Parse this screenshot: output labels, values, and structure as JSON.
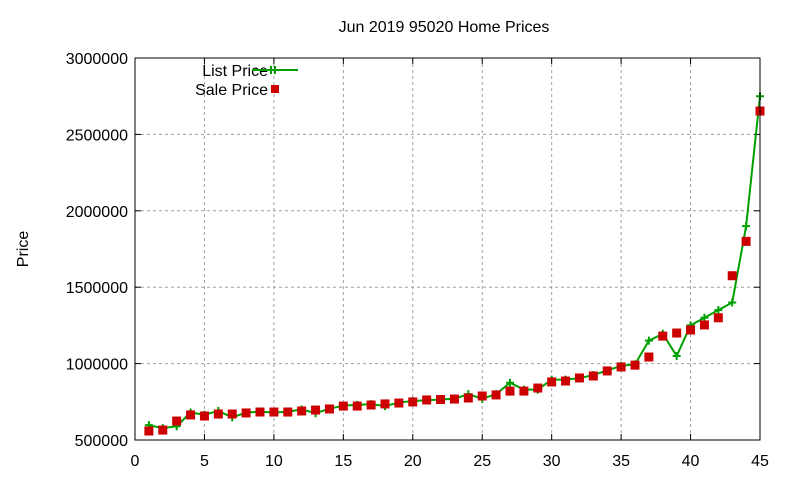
{
  "chart_data": {
    "type": "line",
    "title": "Jun 2019 95020 Home Prices",
    "xlabel": "",
    "ylabel": "Price",
    "xlim": [
      0,
      45
    ],
    "ylim": [
      500000,
      3000000
    ],
    "xticks": [
      0,
      5,
      10,
      15,
      20,
      25,
      30,
      35,
      40,
      45
    ],
    "yticks": [
      500000,
      1000000,
      1500000,
      2000000,
      2500000,
      3000000
    ],
    "grid": true,
    "legend": "top-left",
    "x": [
      1,
      2,
      3,
      4,
      5,
      6,
      7,
      8,
      9,
      10,
      11,
      12,
      13,
      14,
      15,
      16,
      17,
      18,
      19,
      20,
      21,
      22,
      23,
      24,
      25,
      26,
      27,
      28,
      29,
      30,
      31,
      32,
      33,
      34,
      35,
      36,
      37,
      38,
      39,
      40,
      41,
      42,
      43,
      44,
      45
    ],
    "series": [
      {
        "name": "List Price",
        "style": "linespoints",
        "color": "#00a000",
        "values": [
          597000,
          578000,
          590000,
          680000,
          665000,
          690000,
          648000,
          680000,
          685000,
          680000,
          685000,
          700000,
          675000,
          705000,
          725000,
          730000,
          735000,
          722000,
          745000,
          755000,
          760000,
          765000,
          770000,
          800000,
          770000,
          800000,
          875000,
          830000,
          830000,
          895000,
          895000,
          905000,
          925000,
          955000,
          985000,
          995000,
          1150000,
          1195000,
          1050000,
          1250000,
          1300000,
          1350000,
          1400000,
          1900000,
          2750000
        ]
      },
      {
        "name": "Sale Price",
        "style": "points",
        "color": "#cc0000",
        "values": [
          559000,
          565000,
          624000,
          664000,
          657000,
          670000,
          670000,
          677000,
          683000,
          683000,
          683000,
          690000,
          696000,
          703000,
          722000,
          722000,
          729000,
          736000,
          742000,
          749000,
          762000,
          765000,
          768000,
          775000,
          788000,
          795000,
          820000,
          820000,
          840000,
          880000,
          886000,
          906000,
          919000,
          952000,
          978000,
          990000,
          1043000,
          1180000,
          1200000,
          1220000,
          1253000,
          1300000,
          1575000,
          1800000,
          2653000
        ]
      }
    ]
  }
}
